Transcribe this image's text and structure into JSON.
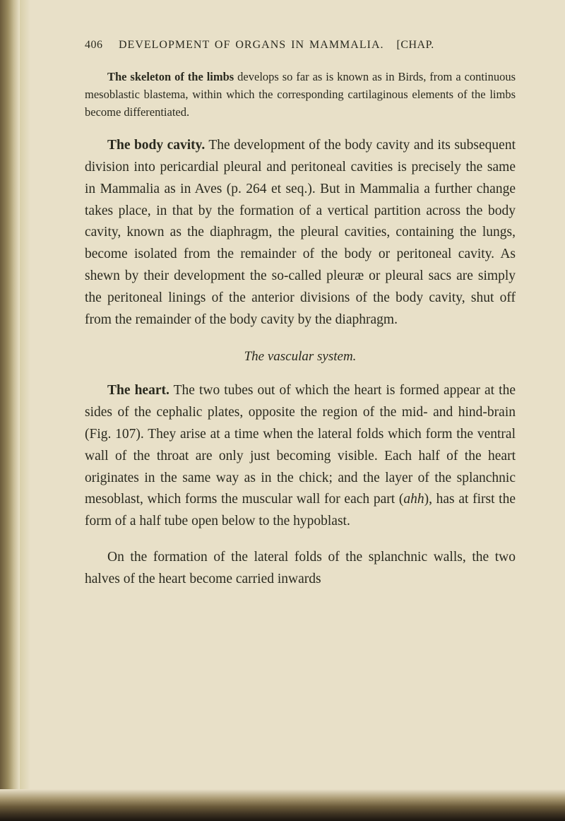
{
  "page": {
    "number": "406",
    "header_caps": "DEVELOPMENT OF ORGANS IN MAMMALIA.",
    "header_suffix": "[CHAP.",
    "background_color": "#e8e0c8",
    "text_color": "#2a2a1f"
  },
  "paragraphs": {
    "p1_bold": "The skeleton of the limbs",
    "p1_rest": " develops so far as is known as in Birds, from a continuous mesoblastic blastema, within which the corresponding cartilaginous elements of the limbs become differentiated.",
    "p2_bold": "The body cavity.",
    "p2_rest": " The development of the body cavity and its subsequent division into pericardial pleural and peritoneal cavities is precisely the same in Mammalia as in Aves (p. 264 et seq.). But in Mammalia a further change takes place, in that by the formation of a vertical partition across the body cavity, known as the diaphragm, the pleural cavities, containing the lungs, become isolated from the remainder of the body or peritoneal cavity. As shewn by their development the so-called pleuræ or pleural sacs are simply the peritoneal linings of the anterior divisions of the body cavity, shut off from the remainder of the body cavity by the diaphragm.",
    "subtitle": "The vascular system.",
    "p3_bold": "The heart.",
    "p3_rest": " The two tubes out of which the heart is formed appear at the sides of the cephalic plates, opposite the region of the mid- and hind-brain (Fig. 107). They arise at a time when the lateral folds which form the ventral wall of the throat are only just becoming visible. Each half of the heart originates in the same way as in the chick; and the layer of the splanchnic mesoblast, which forms the muscular wall for each part (",
    "p3_italic": "ahh",
    "p3_end": "), has at first the form of a half tube open below to the hypoblast.",
    "p4": "On the formation of the lateral folds of the splanchnic walls, the two halves of the heart become carried inwards"
  },
  "typography": {
    "body_fontsize": 19.5,
    "small_fontsize": 16.5,
    "header_fontsize": 16,
    "line_height": 1.58
  }
}
